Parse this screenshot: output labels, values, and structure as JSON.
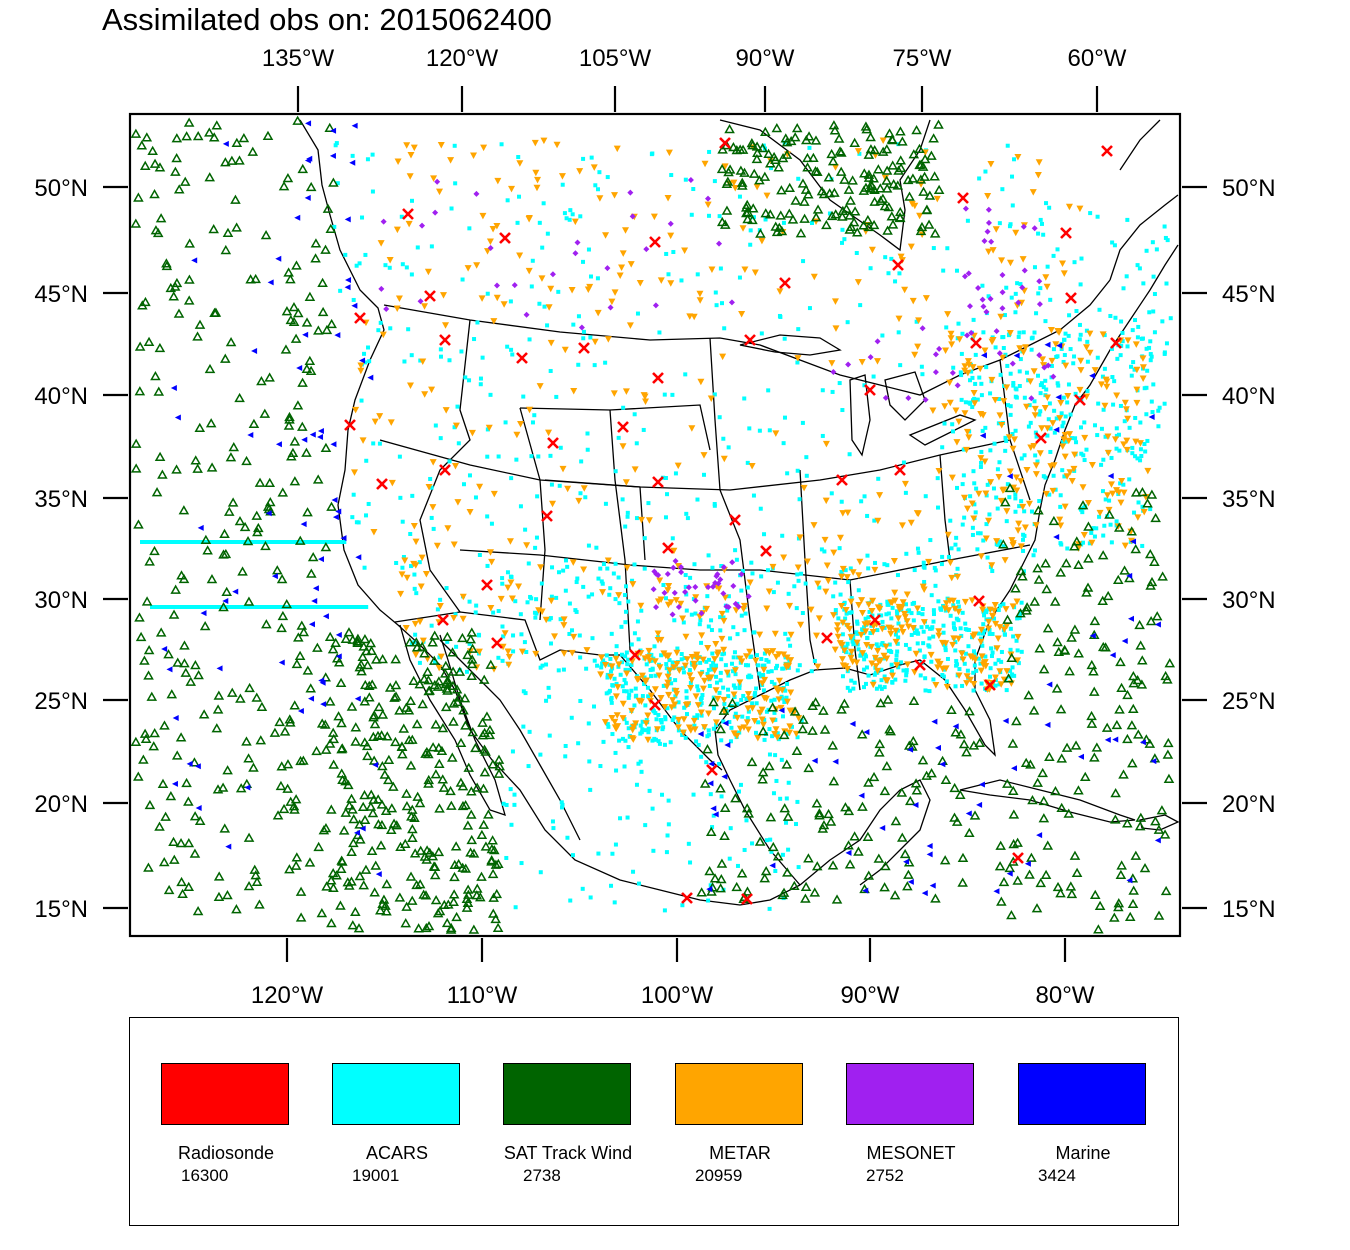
{
  "title": "Assimilated obs on: 2015062400",
  "map": {
    "top_lon_labels": [
      "135°W",
      "120°W",
      "105°W",
      "90°W",
      "75°W",
      "60°W"
    ],
    "bottom_lon_labels": [
      "120°W",
      "110°W",
      "100°W",
      "90°W",
      "80°W"
    ],
    "lat_labels": [
      "50°N",
      "45°N",
      "40°N",
      "35°N",
      "30°N",
      "25°N",
      "20°N",
      "15°N"
    ],
    "colors": {
      "radiosonde": "#ff0000",
      "acars": "#00ffff",
      "sat_track_wind": "#006400",
      "metar": "#ffa500",
      "mesonet": "#a020f0",
      "marine": "#0000ff"
    },
    "markers": {
      "radiosonde": "x-mark",
      "acars": "square-dot",
      "sat_track_wind": "triangle-up-outline",
      "metar": "triangle-down",
      "mesonet": "diamond",
      "marine": "triangle-left"
    }
  },
  "legend": {
    "items": [
      {
        "name": "Radiosonde",
        "count": "16300",
        "color": "#ff0000"
      },
      {
        "name": "ACARS",
        "count": "19001",
        "color": "#00ffff"
      },
      {
        "name": "SAT Track Wind",
        "count": "2738",
        "color": "#006400"
      },
      {
        "name": "METAR",
        "count": "20959",
        "color": "#ffa500"
      },
      {
        "name": "MESONET",
        "count": "2752",
        "color": "#a020f0"
      },
      {
        "name": "Marine",
        "count": "3424",
        "color": "#0000ff"
      }
    ]
  }
}
